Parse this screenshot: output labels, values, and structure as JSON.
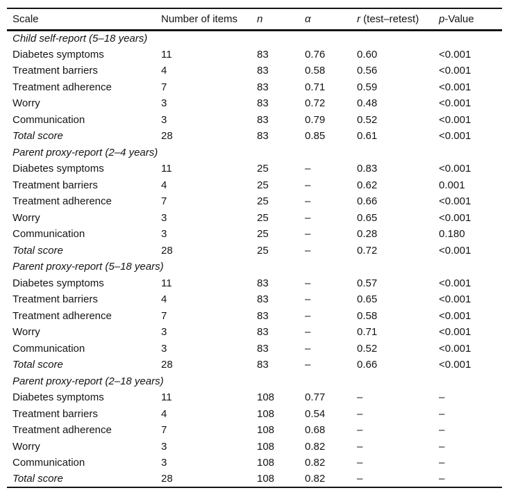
{
  "table": {
    "header": {
      "scale": "Scale",
      "items": "Number of items",
      "n": "n",
      "alpha": "α",
      "r_italic": "r",
      "r_rest": " (test–retest)",
      "p_italic": "p",
      "p_rest": "-Value"
    },
    "sections": [
      {
        "title": "Child self-report (5–18 years)",
        "rows": [
          {
            "label": "Diabetes symptoms",
            "values": [
              "11",
              "83",
              "0.76",
              "0.60",
              "<0.001"
            ]
          },
          {
            "label": "Treatment barriers",
            "values": [
              "4",
              "83",
              "0.58",
              "0.56",
              "<0.001"
            ]
          },
          {
            "label": "Treatment adherence",
            "values": [
              "7",
              "83",
              "0.71",
              "0.59",
              "<0.001"
            ]
          },
          {
            "label": "Worry",
            "values": [
              "3",
              "83",
              "0.72",
              "0.48",
              "<0.001"
            ]
          },
          {
            "label": "Communication",
            "values": [
              "3",
              "83",
              "0.79",
              "0.52",
              "<0.001"
            ]
          }
        ],
        "total": {
          "label": "Total score",
          "values": [
            "28",
            "83",
            "0.85",
            "0.61",
            "<0.001"
          ]
        }
      },
      {
        "title": "Parent proxy-report (2–4 years)",
        "rows": [
          {
            "label": "Diabetes symptoms",
            "values": [
              "11",
              "25",
              "–",
              "0.83",
              "<0.001"
            ]
          },
          {
            "label": "Treatment barriers",
            "values": [
              "4",
              "25",
              "–",
              "0.62",
              "0.001"
            ]
          },
          {
            "label": "Treatment adherence",
            "values": [
              "7",
              "25",
              "–",
              "0.66",
              "<0.001"
            ]
          },
          {
            "label": "Worry",
            "values": [
              "3",
              "25",
              "–",
              "0.65",
              "<0.001"
            ]
          },
          {
            "label": "Communication",
            "values": [
              "3",
              "25",
              "–",
              "0.28",
              "0.180"
            ]
          }
        ],
        "total": {
          "label": "Total score",
          "values": [
            "28",
            "25",
            "–",
            "0.72",
            "<0.001"
          ]
        }
      },
      {
        "title": "Parent proxy-report (5–18 years)",
        "rows": [
          {
            "label": "Diabetes symptoms",
            "values": [
              "11",
              "83",
              "–",
              "0.57",
              "<0.001"
            ]
          },
          {
            "label": "Treatment barriers",
            "values": [
              "4",
              "83",
              "–",
              "0.65",
              "<0.001"
            ]
          },
          {
            "label": "Treatment adherence",
            "values": [
              "7",
              "83",
              "–",
              "0.58",
              "<0.001"
            ]
          },
          {
            "label": "Worry",
            "values": [
              "3",
              "83",
              "–",
              "0.71",
              "<0.001"
            ]
          },
          {
            "label": "Communication",
            "values": [
              "3",
              "83",
              "–",
              "0.52",
              "<0.001"
            ]
          }
        ],
        "total": {
          "label": "Total score",
          "values": [
            "28",
            "83",
            "–",
            "0.66",
            "<0.001"
          ]
        }
      },
      {
        "title": "Parent proxy-report (2–18 years)",
        "rows": [
          {
            "label": "Diabetes symptoms",
            "values": [
              "11",
              "108",
              "0.77",
              "–",
              "–"
            ]
          },
          {
            "label": "Treatment barriers",
            "values": [
              "4",
              "108",
              "0.54",
              "–",
              "–"
            ]
          },
          {
            "label": "Treatment adherence",
            "values": [
              "7",
              "108",
              "0.68",
              "–",
              "–"
            ]
          },
          {
            "label": "Worry",
            "values": [
              "3",
              "108",
              "0.82",
              "–",
              "–"
            ]
          },
          {
            "label": "Communication",
            "values": [
              "3",
              "108",
              "0.82",
              "–",
              "–"
            ]
          }
        ],
        "total": {
          "label": "Total score",
          "values": [
            "28",
            "108",
            "0.82",
            "–",
            "–"
          ]
        }
      }
    ]
  }
}
